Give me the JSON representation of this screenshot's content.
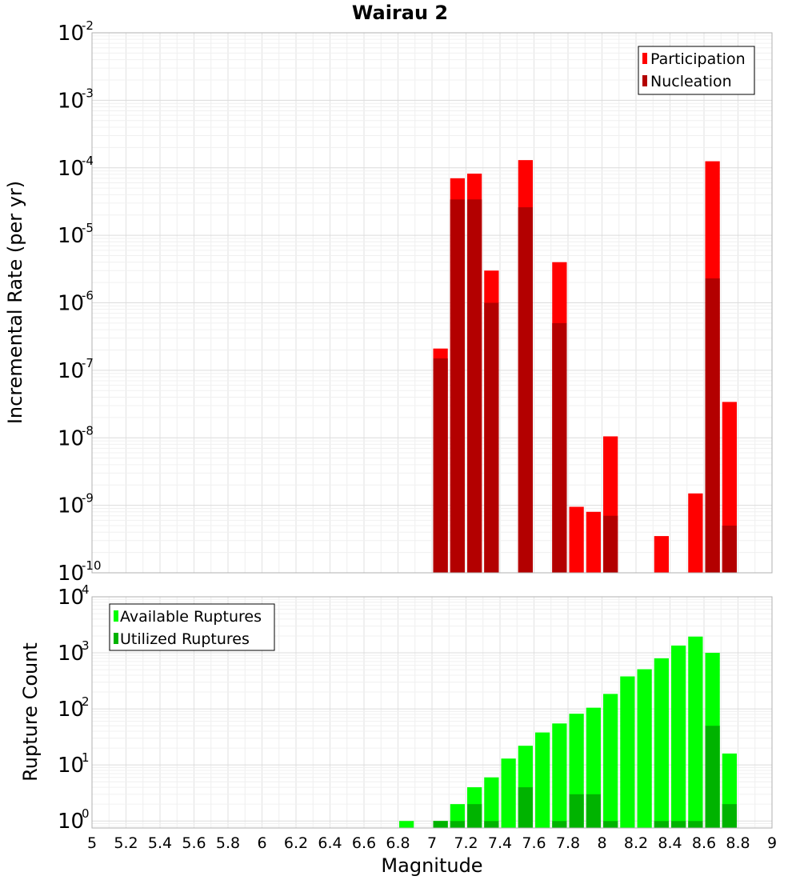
{
  "chart_data": [
    {
      "type": "bar",
      "title": "Wairau 2",
      "xlabel": "",
      "ylabel": "Incremental Rate (per yr)",
      "yscale": "log",
      "ylim": [
        1e-10,
        0.01
      ],
      "xlim": [
        5,
        9
      ],
      "bar_width": 0.1,
      "grid": true,
      "legend": {
        "placement": "top-right",
        "entries": [
          {
            "name": "Participation",
            "color": "#ff0000"
          },
          {
            "name": "Nucleation",
            "color": "#b30000"
          }
        ]
      },
      "series": [
        {
          "name": "Participation",
          "color": "#ff0000",
          "x": [
            7.05,
            7.15,
            7.25,
            7.35,
            7.55,
            7.75,
            7.85,
            7.95,
            8.05,
            8.35,
            8.55,
            8.65,
            8.75
          ],
          "values": [
            2.1e-07,
            7e-05,
            8.2e-05,
            3e-06,
            0.00013,
            4e-06,
            9.5e-10,
            8e-10,
            1.05e-08,
            3.5e-10,
            1.5e-09,
            0.000125,
            3.4e-08
          ]
        },
        {
          "name": "Nucleation",
          "color": "#b30000",
          "x": [
            7.05,
            7.15,
            7.25,
            7.35,
            7.55,
            7.75,
            8.05,
            8.65,
            8.75
          ],
          "values": [
            1.5e-07,
            3.4e-05,
            3.4e-05,
            1e-06,
            2.6e-05,
            5e-07,
            7e-10,
            2.3e-06,
            5e-10
          ]
        }
      ]
    },
    {
      "type": "bar",
      "title": "",
      "xlabel": "Magnitude",
      "ylabel": "Rupture Count",
      "yscale": "log",
      "ylim": [
        0.75,
        10000
      ],
      "xlim": [
        5,
        9
      ],
      "bar_width": 0.1,
      "grid": true,
      "x_ticks": [
        "5",
        "5.2",
        "5.4",
        "5.6",
        "5.8",
        "6",
        "6.2",
        "6.4",
        "6.6",
        "6.8",
        "7",
        "7.2",
        "7.4",
        "7.6",
        "7.8",
        "8",
        "8.2",
        "8.4",
        "8.6",
        "8.8",
        "9"
      ],
      "legend": {
        "placement": "top-left",
        "entries": [
          {
            "name": "Available Ruptures",
            "color": "#00ff00"
          },
          {
            "name": "Utilized Ruptures",
            "color": "#00b300"
          }
        ]
      },
      "series": [
        {
          "name": "Available Ruptures",
          "color": "#00ff00",
          "x": [
            6.85,
            7.05,
            7.15,
            7.25,
            7.35,
            7.45,
            7.55,
            7.65,
            7.75,
            7.85,
            7.95,
            8.05,
            8.15,
            8.25,
            8.35,
            8.45,
            8.55,
            8.65,
            8.75
          ],
          "values": [
            1,
            1,
            2,
            4,
            6,
            13,
            22,
            38,
            55,
            82,
            105,
            185,
            380,
            510,
            800,
            1350,
            1950,
            1000,
            16
          ]
        },
        {
          "name": "Utilized Ruptures",
          "color": "#00b300",
          "x": [
            7.05,
            7.15,
            7.25,
            7.35,
            7.55,
            7.75,
            7.85,
            7.95,
            8.05,
            8.35,
            8.45,
            8.55,
            8.65,
            8.75
          ],
          "values": [
            1,
            1,
            2,
            1,
            4,
            1,
            3,
            3,
            1,
            1,
            1,
            1,
            50,
            2
          ]
        }
      ]
    }
  ]
}
